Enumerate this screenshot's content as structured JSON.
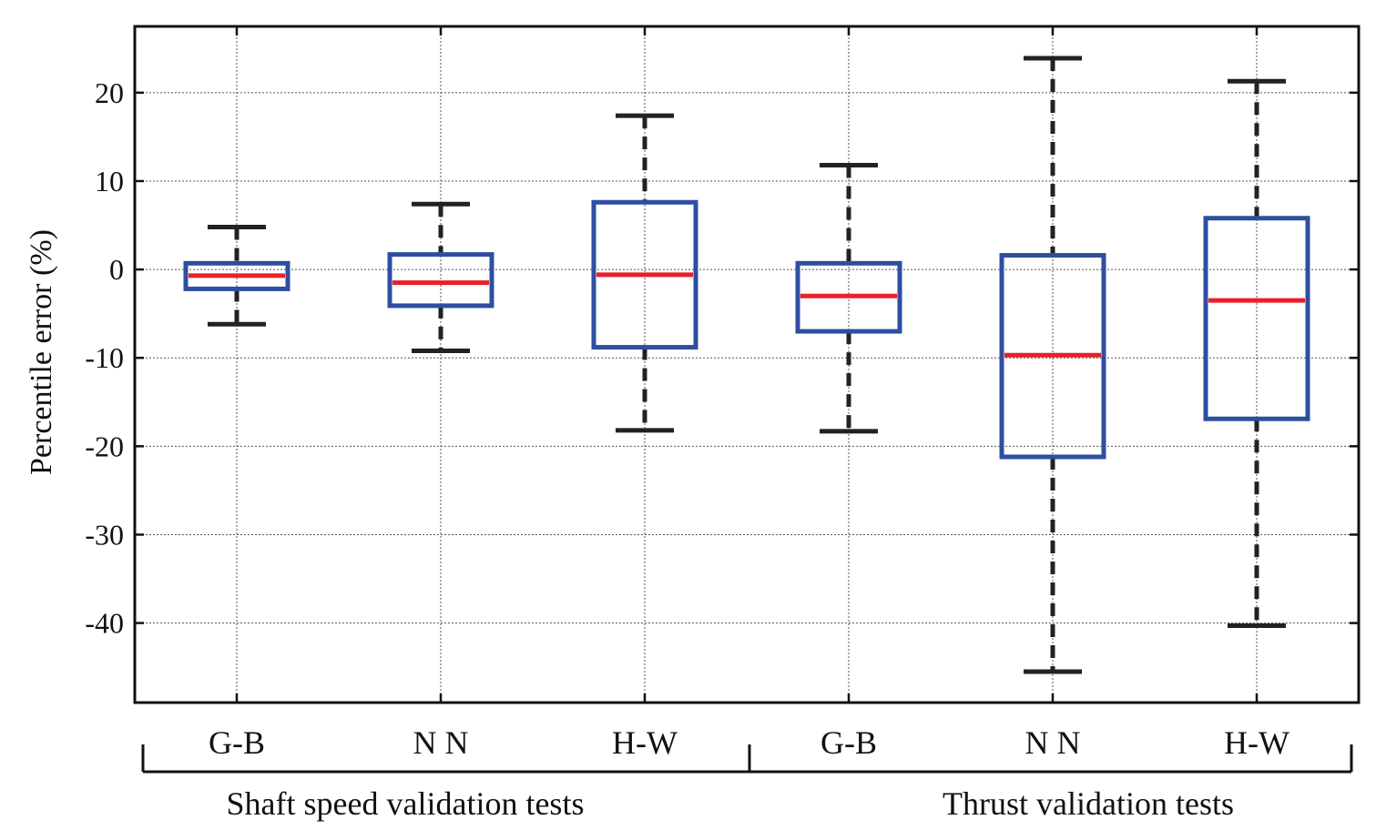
{
  "chart_data": {
    "type": "box",
    "ylabel": "Percentile error (%)",
    "ylim": [
      -49,
      27.5
    ],
    "yticks": [
      20,
      10,
      0,
      -10,
      -20,
      -30,
      -40
    ],
    "ytick_labels": [
      "20",
      "10",
      "0",
      "-10",
      "-20",
      "-30",
      "-40"
    ],
    "grid": true,
    "categories": [
      "G-B",
      "N N",
      "H-W",
      "G-B",
      "N N",
      "H-W"
    ],
    "groups": [
      {
        "label": "Shaft speed validation tests",
        "categories": [
          0,
          1,
          2
        ]
      },
      {
        "label": "Thrust validation tests",
        "categories": [
          3,
          4,
          5
        ]
      }
    ],
    "boxes": [
      {
        "whisker_low": -6.2,
        "q1": -2.2,
        "median": -0.7,
        "q3": 0.7,
        "whisker_high": 4.8
      },
      {
        "whisker_low": -9.2,
        "q1": -4.1,
        "median": -1.5,
        "q3": 1.7,
        "whisker_high": 7.4
      },
      {
        "whisker_low": -18.2,
        "q1": -8.8,
        "median": -0.6,
        "q3": 7.6,
        "whisker_high": 17.4
      },
      {
        "whisker_low": -18.3,
        "q1": -7.0,
        "median": -3.0,
        "q3": 0.7,
        "whisker_high": 11.8
      },
      {
        "whisker_low": -45.5,
        "q1": -21.2,
        "median": -9.7,
        "q3": 1.6,
        "whisker_high": 23.9
      },
      {
        "whisker_low": -40.3,
        "q1": -16.9,
        "median": -3.5,
        "q3": 5.8,
        "whisker_high": 21.3
      }
    ],
    "colors": {
      "box": "#2e4ea0",
      "median": "#e8202a",
      "whisker": "#222222",
      "grid": "#555555",
      "axis": "#111111"
    }
  }
}
